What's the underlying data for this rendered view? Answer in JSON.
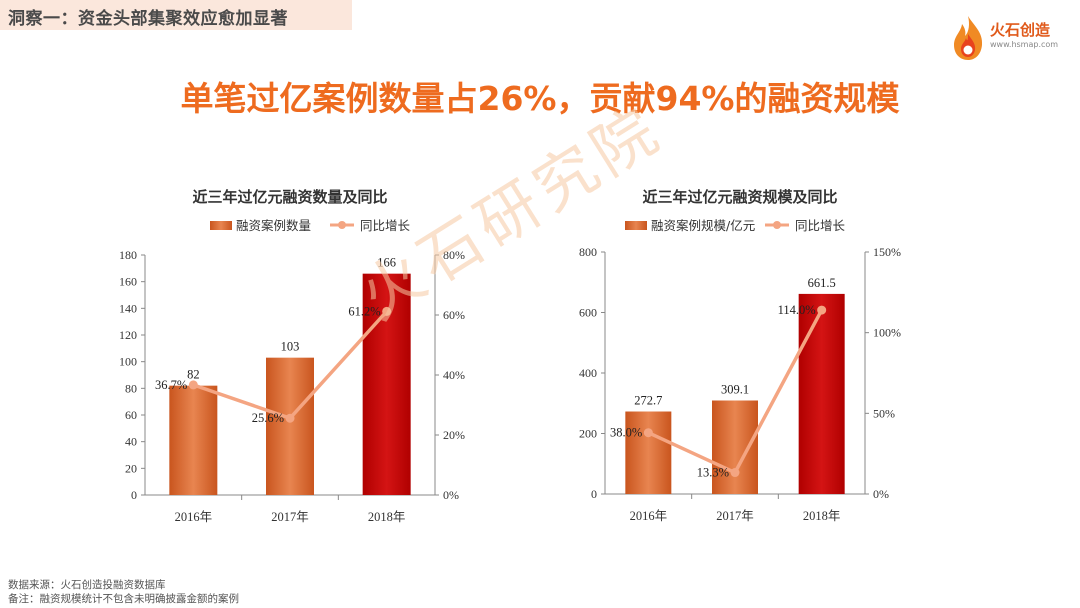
{
  "header": {
    "text": "洞察一：资金头部集聚效应愈加显著"
  },
  "logo": {
    "name": "火石创造",
    "url": "www.hsmap.com"
  },
  "headline": "单笔过亿案例数量占26%，贡献94%的融资规模",
  "watermark": "火石研究院",
  "colors": {
    "bar": "#d9682b",
    "bar_highlight": "#c00000",
    "line": "#f4a582",
    "accent": "#ee6b1f"
  },
  "chart_data": [
    {
      "type": "bar",
      "title": "近三年过亿元融资数量及同比",
      "categories": [
        "2016年",
        "2017年",
        "2018年"
      ],
      "series": [
        {
          "name": "融资案例数量",
          "type": "bar",
          "axis": "left",
          "values": [
            82,
            103,
            166
          ],
          "labels": [
            "82",
            "103",
            "166"
          ]
        },
        {
          "name": "同比增长",
          "type": "line",
          "axis": "right",
          "values": [
            36.7,
            25.6,
            61.2
          ],
          "labels": [
            "36.7%",
            "25.6%",
            "61.2%"
          ]
        }
      ],
      "ylim": [
        0,
        180
      ],
      "yticks": [
        "0",
        "20",
        "40",
        "60",
        "80",
        "100",
        "120",
        "140",
        "160",
        "180"
      ],
      "y2lim": [
        0,
        80
      ],
      "y2ticks": [
        "0%",
        "20%",
        "40%",
        "60%",
        "80%"
      ],
      "legend": "top"
    },
    {
      "type": "bar",
      "title": "近三年过亿元融资规模及同比",
      "categories": [
        "2016年",
        "2017年",
        "2018年"
      ],
      "series": [
        {
          "name": "融资案例规模/亿元",
          "type": "bar",
          "axis": "left",
          "values": [
            272.7,
            309.1,
            661.5
          ],
          "labels": [
            "272.7",
            "309.1",
            "661.5"
          ]
        },
        {
          "name": "同比增长",
          "type": "line",
          "axis": "right",
          "values": [
            38.0,
            13.3,
            114.0
          ],
          "labels": [
            "38.0%",
            "13.3%",
            "114.0%"
          ]
        }
      ],
      "ylim": [
        0,
        800
      ],
      "yticks": [
        "0",
        "200",
        "400",
        "600",
        "800"
      ],
      "y2lim": [
        0,
        150
      ],
      "y2ticks": [
        "0%",
        "50%",
        "100%",
        "150%"
      ],
      "legend": "top"
    }
  ],
  "footer": {
    "source": "数据来源：火石创造投融资数据库",
    "note": "备注：融资规模统计不包含未明确披露金额的案例"
  }
}
